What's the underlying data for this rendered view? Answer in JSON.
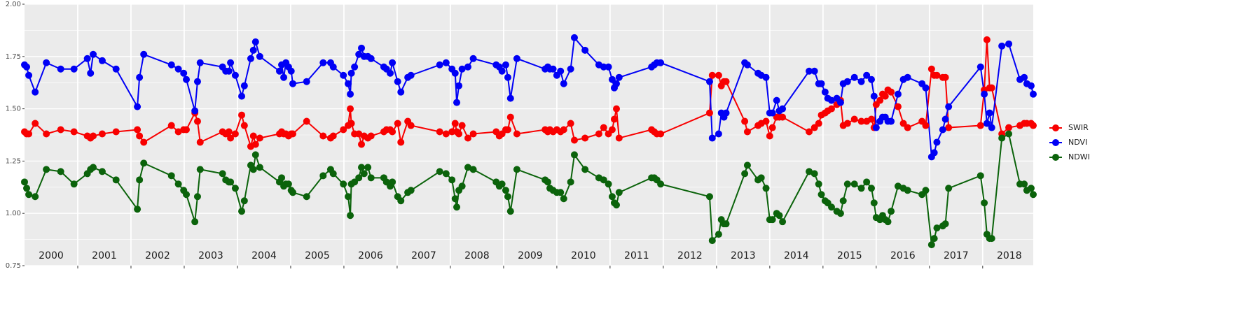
{
  "chart_data": {
    "type": "line",
    "x": [
      2000.0,
      2000.04,
      2000.08,
      2000.2,
      2000.41,
      2000.68,
      2000.93,
      2001.18,
      2001.24,
      2001.29,
      2001.46,
      2001.72,
      2002.12,
      2002.16,
      2002.24,
      2002.76,
      2002.89,
      2002.99,
      2003.04,
      2003.2,
      2003.25,
      2003.3,
      2003.72,
      2003.78,
      2003.84,
      2003.87,
      2003.96,
      2004.08,
      2004.13,
      2004.25,
      2004.3,
      2004.34,
      2004.42,
      2004.79,
      2004.83,
      2004.87,
      2004.91,
      2004.96,
      2005.01,
      2005.04,
      2005.3,
      2005.61,
      2005.75,
      2005.8,
      2005.99,
      2006.08,
      2006.12,
      2006.14,
      2006.2,
      2006.28,
      2006.33,
      2006.38,
      2006.45,
      2006.51,
      2006.75,
      2006.8,
      2006.87,
      2006.91,
      2007.01,
      2007.07,
      2007.2,
      2007.26,
      2007.8,
      2007.92,
      2008.03,
      2008.09,
      2008.12,
      2008.16,
      2008.22,
      2008.33,
      2008.43,
      2008.86,
      2008.92,
      2008.97,
      2009.04,
      2009.08,
      2009.13,
      2009.25,
      2009.78,
      2009.83,
      2009.87,
      2009.93,
      2010.0,
      2010.07,
      2010.13,
      2010.26,
      2010.33,
      2010.53,
      2010.79,
      2010.88,
      2010.97,
      2011.04,
      2011.08,
      2011.12,
      2011.17,
      2011.78,
      2011.83,
      2011.88,
      2011.95,
      2012.87,
      2012.92,
      2013.04,
      2013.09,
      2013.14,
      2013.18,
      2013.53,
      2013.58,
      2013.78,
      2013.84,
      2013.93,
      2014.0,
      2014.05,
      2014.13,
      2014.18,
      2014.24,
      2014.74,
      2014.84,
      2014.92,
      2014.97,
      2015.04,
      2015.09,
      2015.16,
      2015.26,
      2015.33,
      2015.38,
      2015.46,
      2015.59,
      2015.72,
      2015.82,
      2015.91,
      2015.96,
      2016.0,
      2016.07,
      2016.12,
      2016.17,
      2016.22,
      2016.28,
      2016.41,
      2016.51,
      2016.59,
      2016.86,
      2016.93,
      2017.04,
      2017.09,
      2017.14,
      2017.25,
      2017.3,
      2017.36,
      2017.96,
      2018.03,
      2018.08,
      2018.13,
      2018.17,
      2018.36,
      2018.49,
      2018.7,
      2018.78,
      2018.83,
      2018.91,
      2018.95
    ],
    "series": [
      {
        "name": "SWIR",
        "color": "#f80000",
        "values": [
          1.39,
          1.38,
          1.38,
          1.43,
          1.38,
          1.4,
          1.39,
          1.37,
          1.36,
          1.37,
          1.38,
          1.39,
          1.4,
          1.37,
          1.34,
          1.42,
          1.39,
          1.4,
          1.4,
          1.48,
          1.44,
          1.34,
          1.39,
          1.38,
          1.39,
          1.36,
          1.38,
          1.47,
          1.42,
          1.32,
          1.37,
          1.33,
          1.36,
          1.38,
          1.39,
          1.38,
          1.38,
          1.37,
          1.38,
          1.38,
          1.44,
          1.37,
          1.36,
          1.37,
          1.4,
          1.42,
          1.5,
          1.43,
          1.38,
          1.38,
          1.33,
          1.37,
          1.36,
          1.37,
          1.39,
          1.4,
          1.4,
          1.39,
          1.43,
          1.34,
          1.44,
          1.42,
          1.39,
          1.38,
          1.39,
          1.43,
          1.39,
          1.38,
          1.42,
          1.36,
          1.38,
          1.39,
          1.37,
          1.38,
          1.4,
          1.4,
          1.46,
          1.38,
          1.4,
          1.39,
          1.4,
          1.39,
          1.4,
          1.39,
          1.4,
          1.43,
          1.35,
          1.36,
          1.38,
          1.41,
          1.38,
          1.4,
          1.45,
          1.5,
          1.36,
          1.4,
          1.39,
          1.38,
          1.38,
          1.48,
          1.66,
          1.66,
          1.61,
          1.63,
          1.63,
          1.44,
          1.39,
          1.42,
          1.43,
          1.44,
          1.37,
          1.41,
          1.46,
          1.46,
          1.46,
          1.39,
          1.41,
          1.43,
          1.47,
          1.48,
          1.49,
          1.5,
          1.52,
          1.54,
          1.42,
          1.43,
          1.45,
          1.44,
          1.44,
          1.45,
          1.41,
          1.52,
          1.54,
          1.57,
          1.56,
          1.59,
          1.58,
          1.51,
          1.43,
          1.41,
          1.44,
          1.42,
          1.69,
          1.66,
          1.66,
          1.65,
          1.65,
          1.41,
          1.42,
          1.59,
          1.83,
          1.6,
          1.6,
          1.38,
          1.41,
          1.42,
          1.43,
          1.43,
          1.43,
          1.42
        ]
      },
      {
        "name": "NDVI",
        "color": "#0000f5",
        "values": [
          1.71,
          1.7,
          1.66,
          1.58,
          1.72,
          1.69,
          1.69,
          1.74,
          1.67,
          1.76,
          1.73,
          1.69,
          1.51,
          1.65,
          1.76,
          1.71,
          1.69,
          1.67,
          1.64,
          1.49,
          1.63,
          1.72,
          1.7,
          1.68,
          1.68,
          1.72,
          1.66,
          1.56,
          1.61,
          1.74,
          1.78,
          1.82,
          1.75,
          1.68,
          1.71,
          1.65,
          1.72,
          1.7,
          1.68,
          1.62,
          1.63,
          1.72,
          1.72,
          1.7,
          1.66,
          1.62,
          1.57,
          1.67,
          1.7,
          1.76,
          1.79,
          1.75,
          1.75,
          1.74,
          1.7,
          1.69,
          1.67,
          1.72,
          1.63,
          1.58,
          1.65,
          1.66,
          1.71,
          1.72,
          1.69,
          1.67,
          1.53,
          1.61,
          1.69,
          1.7,
          1.74,
          1.71,
          1.7,
          1.68,
          1.71,
          1.65,
          1.55,
          1.74,
          1.69,
          1.7,
          1.69,
          1.69,
          1.66,
          1.68,
          1.62,
          1.69,
          1.84,
          1.78,
          1.71,
          1.7,
          1.7,
          1.64,
          1.6,
          1.62,
          1.65,
          1.7,
          1.71,
          1.72,
          1.72,
          1.63,
          1.36,
          1.38,
          1.48,
          1.46,
          1.48,
          1.72,
          1.71,
          1.67,
          1.66,
          1.65,
          1.48,
          1.48,
          1.54,
          1.49,
          1.5,
          1.68,
          1.68,
          1.62,
          1.62,
          1.58,
          1.55,
          1.54,
          1.55,
          1.53,
          1.62,
          1.63,
          1.65,
          1.63,
          1.66,
          1.64,
          1.56,
          1.41,
          1.44,
          1.46,
          1.46,
          1.44,
          1.44,
          1.57,
          1.64,
          1.65,
          1.62,
          1.6,
          1.27,
          1.29,
          1.34,
          1.4,
          1.45,
          1.51,
          1.7,
          1.57,
          1.43,
          1.48,
          1.41,
          1.8,
          1.81,
          1.64,
          1.65,
          1.62,
          1.61,
          1.57
        ]
      },
      {
        "name": "NDWI",
        "color": "#0b630b",
        "values": [
          1.15,
          1.12,
          1.09,
          1.08,
          1.21,
          1.2,
          1.14,
          1.19,
          1.21,
          1.22,
          1.2,
          1.16,
          1.02,
          1.16,
          1.24,
          1.18,
          1.14,
          1.11,
          1.09,
          0.96,
          1.08,
          1.21,
          1.19,
          1.16,
          1.15,
          1.15,
          1.12,
          1.01,
          1.06,
          1.23,
          1.21,
          1.28,
          1.22,
          1.15,
          1.17,
          1.13,
          1.14,
          1.14,
          1.11,
          1.1,
          1.08,
          1.18,
          1.21,
          1.19,
          1.14,
          1.08,
          0.99,
          1.14,
          1.15,
          1.17,
          1.22,
          1.19,
          1.22,
          1.17,
          1.17,
          1.15,
          1.13,
          1.15,
          1.08,
          1.06,
          1.1,
          1.11,
          1.2,
          1.19,
          1.16,
          1.07,
          1.03,
          1.11,
          1.13,
          1.22,
          1.21,
          1.15,
          1.13,
          1.14,
          1.11,
          1.08,
          1.01,
          1.21,
          1.16,
          1.15,
          1.12,
          1.11,
          1.1,
          1.1,
          1.07,
          1.15,
          1.28,
          1.21,
          1.17,
          1.16,
          1.14,
          1.08,
          1.05,
          1.04,
          1.1,
          1.17,
          1.17,
          1.16,
          1.14,
          1.08,
          0.87,
          0.9,
          0.97,
          0.95,
          0.95,
          1.19,
          1.23,
          1.16,
          1.17,
          1.12,
          0.97,
          0.97,
          1.0,
          0.99,
          0.96,
          1.2,
          1.19,
          1.14,
          1.09,
          1.06,
          1.05,
          1.03,
          1.01,
          1.0,
          1.06,
          1.14,
          1.14,
          1.12,
          1.15,
          1.12,
          1.05,
          0.98,
          0.97,
          0.99,
          0.97,
          0.96,
          1.01,
          1.13,
          1.12,
          1.11,
          1.09,
          1.11,
          0.85,
          0.88,
          0.93,
          0.94,
          0.95,
          1.12,
          1.18,
          1.05,
          0.9,
          0.88,
          0.88,
          1.36,
          1.38,
          1.14,
          1.14,
          1.11,
          1.12,
          1.09
        ]
      }
    ],
    "xlim": [
      2000,
      2018.95
    ],
    "xticks": [
      2001,
      2002,
      2003,
      2004,
      2005,
      2006,
      2007,
      2008,
      2009,
      2010,
      2011,
      2012,
      2013,
      2014,
      2015,
      2016,
      2017,
      2018
    ],
    "ylim": [
      0.75,
      2.0
    ],
    "yticks": [
      {
        "value": 0.75,
        "label": "0.75"
      },
      {
        "value": 1.0,
        "label": "1.00"
      },
      {
        "value": 1.25,
        "label": "1.25"
      },
      {
        "value": 1.5,
        "label": "1.50"
      },
      {
        "value": 1.75,
        "label": "1.75"
      },
      {
        "value": 2.0,
        "label": "2.00"
      }
    ],
    "annotations": [
      {
        "text": "2000",
        "x": 2000.5
      },
      {
        "text": "2001",
        "x": 2001.5
      },
      {
        "text": "2002",
        "x": 2002.5
      },
      {
        "text": "2003",
        "x": 2003.5
      },
      {
        "text": "2004",
        "x": 2004.5
      },
      {
        "text": "2005",
        "x": 2005.5
      },
      {
        "text": "2006",
        "x": 2006.5
      },
      {
        "text": "2007",
        "x": 2007.5
      },
      {
        "text": "2008",
        "x": 2008.5
      },
      {
        "text": "2009",
        "x": 2009.5
      },
      {
        "text": "2010",
        "x": 2010.5
      },
      {
        "text": "2011",
        "x": 2011.5
      },
      {
        "text": "2012",
        "x": 2012.5
      },
      {
        "text": "2013",
        "x": 2013.5
      },
      {
        "text": "2014",
        "x": 2014.5
      },
      {
        "text": "2015",
        "x": 2015.5
      },
      {
        "text": "2016",
        "x": 2016.5
      },
      {
        "text": "2017",
        "x": 2017.5
      },
      {
        "text": "2018",
        "x": 2018.5
      }
    ],
    "grid": true,
    "legend": "right"
  }
}
